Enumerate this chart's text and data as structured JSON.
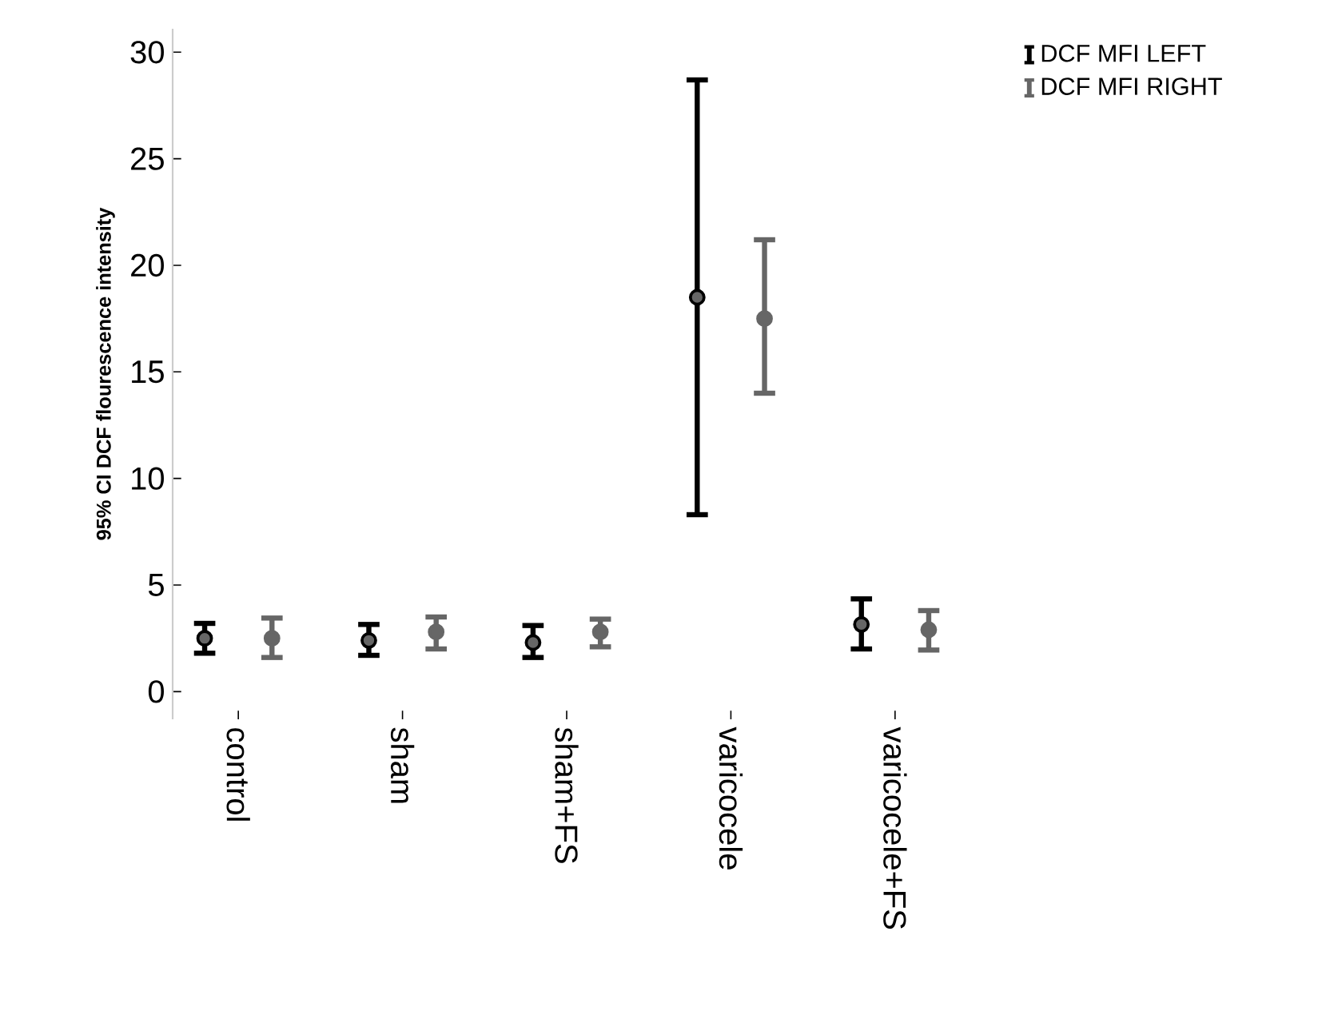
{
  "chart_data": {
    "type": "scatter",
    "ylabel": "95% CI DCF flourescence intensity",
    "categories": [
      "control",
      "sham",
      "sham+FS",
      "varicocele",
      "varicocele+FS"
    ],
    "series": [
      {
        "name": "DCF MFI LEFT",
        "color": "#000000",
        "values": [
          2.5,
          2.4,
          2.3,
          18.5,
          3.15
        ],
        "errors": [
          [
            1.8,
            3.2
          ],
          [
            1.7,
            3.15
          ],
          [
            1.6,
            3.1
          ],
          [
            8.3,
            28.7
          ],
          [
            2.0,
            4.35
          ]
        ]
      },
      {
        "name": "DCF MFI RIGHT",
        "color": "#666666",
        "values": [
          2.5,
          2.8,
          2.8,
          17.5,
          2.9
        ],
        "errors": [
          [
            1.6,
            3.45
          ],
          [
            2.0,
            3.5
          ],
          [
            2.1,
            3.4
          ],
          [
            14.0,
            21.2
          ],
          [
            1.95,
            3.8
          ]
        ]
      }
    ],
    "ylim": [
      -1.3,
      31.1
    ],
    "yticks": [
      0,
      5,
      10,
      15,
      20,
      25,
      30
    ],
    "grid": false,
    "legend": "top right",
    "marker": "circle"
  }
}
